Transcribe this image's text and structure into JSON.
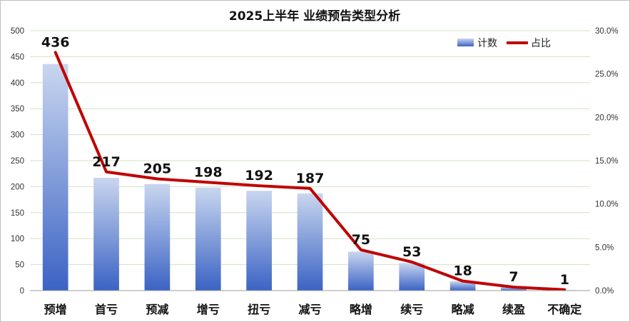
{
  "chart_data": {
    "type": "bar",
    "title": "2025上半年 业绩预告类型分析",
    "categories": [
      "预增",
      "首亏",
      "预减",
      "增亏",
      "扭亏",
      "减亏",
      "略增",
      "续亏",
      "略减",
      "续盈",
      "不确定"
    ],
    "series": [
      {
        "name": "计数",
        "type": "bar",
        "axis": "left",
        "values": [
          436,
          217,
          205,
          198,
          192,
          187,
          75,
          53,
          18,
          7,
          1
        ]
      },
      {
        "name": "占比",
        "type": "line",
        "axis": "right",
        "values": [
          27.5,
          13.7,
          12.9,
          12.5,
          12.1,
          11.8,
          4.7,
          3.3,
          1.1,
          0.4,
          0.1
        ]
      }
    ],
    "ylim": [
      0,
      500
    ],
    "yticks": [
      "0",
      "50",
      "100",
      "150",
      "200",
      "250",
      "300",
      "350",
      "400",
      "450",
      "500"
    ],
    "y2lim": [
      0,
      30
    ],
    "y2ticks": [
      "0.0%",
      "5.0%",
      "10.0%",
      "15.0%",
      "20.0%",
      "25.0%",
      "30.0%"
    ],
    "grid": true,
    "legend_position": "top-right",
    "colors": {
      "bar_top": "#c9d6ef",
      "bar_bottom": "#3b63c4",
      "line": "#c00000",
      "grid": "#cfe3c4"
    }
  }
}
